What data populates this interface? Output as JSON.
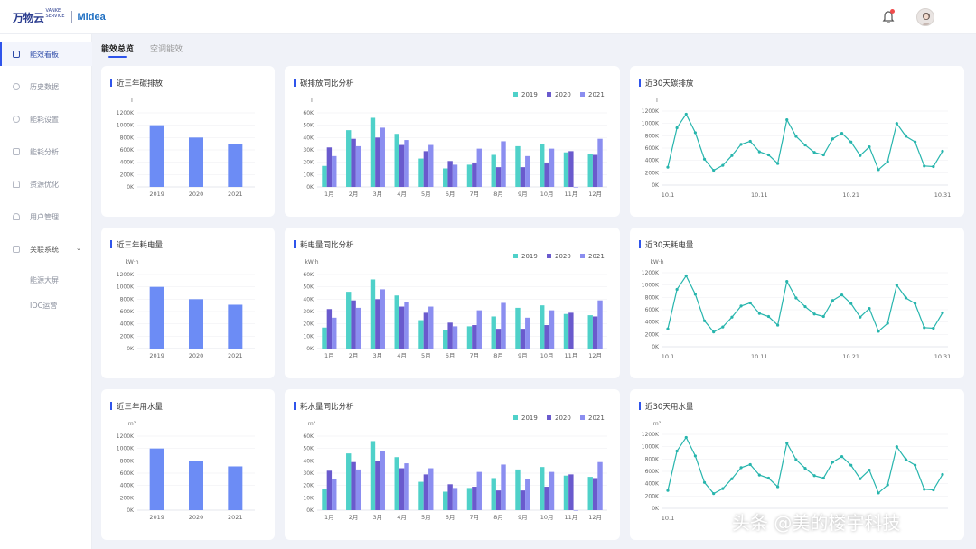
{
  "header": {
    "logo_main": "万物云",
    "logo_sub": "VANKE SERVICE",
    "logo_partner": "Midea",
    "notification_icon": "bell-icon",
    "avatar_icon": "avatar-icon"
  },
  "sidebar": {
    "items": [
      {
        "label": "能效看板",
        "icon": "dashboard-icon",
        "active": true
      },
      {
        "label": "历史数据",
        "icon": "clock-icon"
      },
      {
        "label": "能耗设置",
        "icon": "settings-icon"
      },
      {
        "label": "能耗分析",
        "icon": "analysis-icon"
      },
      {
        "label": "资源优化",
        "icon": "lock-icon"
      },
      {
        "label": "用户管理",
        "icon": "user-icon"
      },
      {
        "label": "关联系统",
        "icon": "grid-icon",
        "expandable": true
      }
    ],
    "sub_items": [
      "能源大屏",
      "IOC运营"
    ]
  },
  "tabs": [
    {
      "label": "能效总览",
      "active": true
    },
    {
      "label": "空调能效"
    }
  ],
  "colors": {
    "accent": "#2f54eb",
    "bar_yearly": "#6c8cf5",
    "c2019": "#4fd1c9",
    "c2020": "#6a5acd",
    "c2021": "#8b8ef0",
    "line": "#27b5ad"
  },
  "cards": [
    {
      "title": "近三年碳排放",
      "chart_data": {
        "type": "bar",
        "unit": "T",
        "categories": [
          "2019",
          "2020",
          "2021"
        ],
        "values": [
          1000,
          800,
          700
        ],
        "ylim": [
          0,
          1200
        ],
        "yticks": [
          "0K",
          "200K",
          "400K",
          "600K",
          "800K",
          "1000K",
          "1200K"
        ]
      }
    },
    {
      "title": "碳排放同比分析",
      "chart_data": {
        "type": "bar",
        "unit": "T",
        "categories": [
          "1月",
          "2月",
          "3月",
          "4月",
          "5月",
          "6月",
          "7月",
          "8月",
          "9月",
          "10月",
          "11月",
          "12月"
        ],
        "series": [
          {
            "name": "2019",
            "values": [
              17,
              46,
              56,
              43,
              23,
              15,
              18,
              26,
              33,
              35,
              28,
              27
            ]
          },
          {
            "name": "2020",
            "values": [
              32,
              39,
              40,
              34,
              29,
              21,
              19,
              16,
              16,
              19,
              29,
              26
            ]
          },
          {
            "name": "2021",
            "values": [
              25,
              33,
              48,
              38,
              34,
              18,
              31,
              37,
              25,
              31,
              0,
              39
            ]
          }
        ],
        "ylim": [
          0,
          60
        ],
        "yticks": [
          "0K",
          "10K",
          "20K",
          "30K",
          "40K",
          "50K",
          "60K"
        ],
        "legend": "top-right"
      }
    },
    {
      "title": "近30天碳排放",
      "chart_data": {
        "type": "line",
        "unit": "T",
        "x_labels": [
          "10.1",
          "10.11",
          "10.21",
          "10.31"
        ],
        "values": [
          290,
          930,
          1150,
          850,
          420,
          240,
          320,
          480,
          660,
          710,
          540,
          490,
          350,
          1060,
          790,
          650,
          530,
          490,
          750,
          840,
          700,
          480,
          620,
          250,
          380,
          1000,
          790,
          700,
          310,
          300,
          550
        ],
        "ylim": [
          0,
          1200
        ],
        "yticks": [
          "0K",
          "200K",
          "400K",
          "600K",
          "800K",
          "1000K",
          "1200K"
        ]
      }
    },
    {
      "title": "近三年耗电量",
      "chart_data": {
        "type": "bar",
        "unit": "kW·h",
        "categories": [
          "2019",
          "2020",
          "2021"
        ],
        "values": [
          1000,
          800,
          710
        ],
        "ylim": [
          0,
          1200
        ],
        "yticks": [
          "0K",
          "200K",
          "400K",
          "600K",
          "800K",
          "1000K",
          "1200K"
        ]
      }
    },
    {
      "title": "耗电量同比分析",
      "chart_data": {
        "type": "bar",
        "unit": "kW·h",
        "categories": [
          "1月",
          "2月",
          "3月",
          "4月",
          "5月",
          "6月",
          "7月",
          "8月",
          "9月",
          "10月",
          "11月",
          "12月"
        ],
        "series": [
          {
            "name": "2019",
            "values": [
              17,
              46,
              56,
              43,
              23,
              15,
              18,
              26,
              33,
              35,
              28,
              27
            ]
          },
          {
            "name": "2020",
            "values": [
              32,
              39,
              40,
              34,
              29,
              21,
              19,
              16,
              16,
              19,
              29,
              26
            ]
          },
          {
            "name": "2021",
            "values": [
              25,
              33,
              48,
              38,
              34,
              18,
              31,
              37,
              25,
              31,
              0,
              39
            ]
          }
        ],
        "ylim": [
          0,
          60
        ],
        "yticks": [
          "0K",
          "10K",
          "20K",
          "30K",
          "40K",
          "50K",
          "60K"
        ],
        "legend": "top-right"
      }
    },
    {
      "title": "近30天耗电量",
      "chart_data": {
        "type": "line",
        "unit": "kW·h",
        "x_labels": [
          "10.1",
          "10.11",
          "10.21",
          "10.31"
        ],
        "values": [
          290,
          930,
          1150,
          850,
          420,
          240,
          320,
          480,
          660,
          710,
          540,
          490,
          350,
          1060,
          790,
          650,
          530,
          490,
          750,
          840,
          700,
          480,
          620,
          250,
          380,
          1000,
          790,
          700,
          310,
          300,
          550
        ],
        "ylim": [
          0,
          1200
        ],
        "yticks": [
          "0K",
          "200K",
          "400K",
          "600K",
          "800K",
          "1000K",
          "1200K"
        ]
      }
    },
    {
      "title": "近三年用水量",
      "chart_data": {
        "type": "bar",
        "unit": "m³",
        "categories": [
          "2019",
          "2020",
          "2021"
        ],
        "values": [
          1000,
          800,
          710
        ],
        "ylim": [
          0,
          1200
        ],
        "yticks": [
          "0K",
          "200K",
          "400K",
          "600K",
          "800K",
          "1000K",
          "1200K"
        ]
      }
    },
    {
      "title": "耗水量同比分析",
      "chart_data": {
        "type": "bar",
        "unit": "m³",
        "categories": [
          "1月",
          "2月",
          "3月",
          "4月",
          "5月",
          "6月",
          "7月",
          "8月",
          "9月",
          "10月",
          "11月",
          "12月"
        ],
        "series": [
          {
            "name": "2019",
            "values": [
              17,
              46,
              56,
              43,
              23,
              15,
              18,
              26,
              33,
              35,
              28,
              27
            ]
          },
          {
            "name": "2020",
            "values": [
              32,
              39,
              40,
              34,
              29,
              21,
              19,
              16,
              16,
              19,
              29,
              26
            ]
          },
          {
            "name": "2021",
            "values": [
              25,
              33,
              48,
              38,
              34,
              18,
              31,
              37,
              25,
              31,
              0,
              39
            ]
          }
        ],
        "ylim": [
          0,
          60
        ],
        "yticks": [
          "0K",
          "10K",
          "20K",
          "30K",
          "40K",
          "50K",
          "60K"
        ],
        "legend": "top-right"
      }
    },
    {
      "title": "近30天用水量",
      "chart_data": {
        "type": "line",
        "unit": "m³",
        "x_labels": [
          "10.1"
        ],
        "values": [
          290,
          930,
          1150,
          850,
          420,
          240,
          320,
          480,
          660,
          710,
          540,
          490,
          350,
          1060,
          790,
          650,
          530,
          490,
          750,
          840,
          700,
          480,
          620,
          250,
          380,
          1000,
          790,
          700,
          310,
          300,
          550
        ],
        "ylim": [
          0,
          1200
        ],
        "yticks": [
          "0K",
          "200K",
          "400K",
          "600K",
          "800K",
          "1000K",
          "1200K"
        ]
      }
    }
  ],
  "watermark": "头条 @美的楼宇科技"
}
